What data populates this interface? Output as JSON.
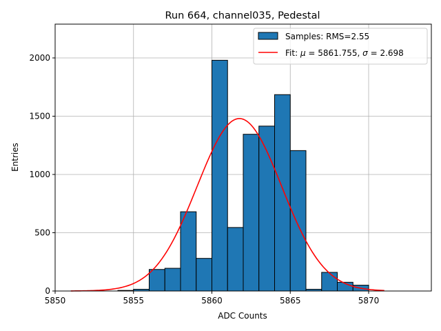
{
  "chart_data": {
    "type": "bar",
    "title": "Run 664, channel035, Pedestal",
    "xlabel": "ADC Counts",
    "ylabel": "Entries",
    "xlim": [
      5850,
      5874
    ],
    "ylim": [
      0,
      2290
    ],
    "xticks": [
      5850,
      5855,
      5860,
      5865,
      5870
    ],
    "yticks": [
      0,
      500,
      1000,
      1500,
      2000
    ],
    "grid": true,
    "legend_position": "top-right",
    "histogram": {
      "name": "Samples: RMS=2.55",
      "color": "#1f77b4",
      "bin_width": 1,
      "bins": [
        {
          "x": 5854,
          "count": 5
        },
        {
          "x": 5855,
          "count": 15
        },
        {
          "x": 5856,
          "count": 185
        },
        {
          "x": 5857,
          "count": 195
        },
        {
          "x": 5858,
          "count": 680
        },
        {
          "x": 5859,
          "count": 280
        },
        {
          "x": 5860,
          "count": 1980
        },
        {
          "x": 5861,
          "count": 545
        },
        {
          "x": 5862,
          "count": 1345
        },
        {
          "x": 5863,
          "count": 1415
        },
        {
          "x": 5864,
          "count": 1685
        },
        {
          "x": 5865,
          "count": 1205
        },
        {
          "x": 5866,
          "count": 15
        },
        {
          "x": 5867,
          "count": 160
        },
        {
          "x": 5868,
          "count": 75
        },
        {
          "x": 5869,
          "count": 50
        }
      ]
    },
    "fit": {
      "name_prefix": "Fit: ",
      "mu_symbol": "μ",
      "sigma_symbol": "σ",
      "mu_text": " = 5861.755, ",
      "sigma_text": " = 2.698",
      "mu": 5861.755,
      "sigma": 2.698,
      "amplitude": 1480,
      "x_range": [
        5851,
        5871
      ],
      "color": "#ff0000"
    }
  }
}
